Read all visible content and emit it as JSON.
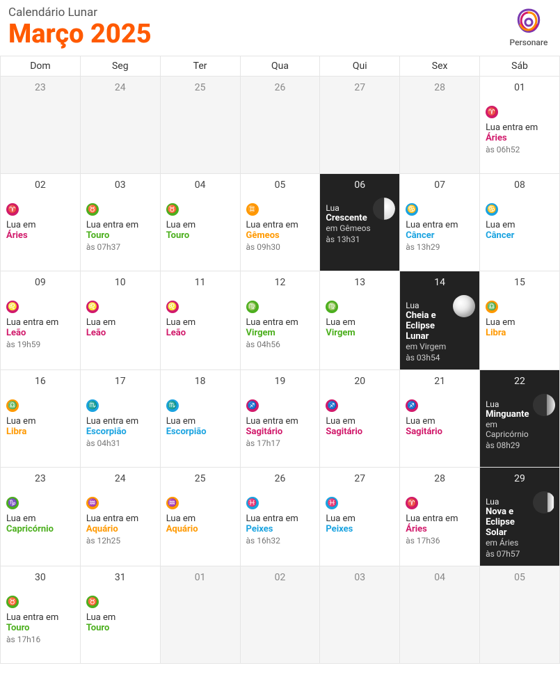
{
  "header": {
    "subtitle": "Calendário Lunar",
    "title": "Março 2025",
    "logo_text": "Personare"
  },
  "colors": {
    "accent": "#ff5a00",
    "aries": "#d11a6b",
    "touro": "#4caf1e",
    "gemeos": "#ff9900",
    "cancer": "#1aa3e0",
    "leao": "#d11a6b",
    "virgem": "#4caf1e",
    "libra": "#ff9900",
    "escorpiao": "#1aa3e0",
    "sagitario": "#d11a6b",
    "capricornio": "#4caf1e",
    "aquario": "#ff9900",
    "peixes": "#1aa3e0",
    "phase_bg": "#222222",
    "inactive_bg": "#f5f5f5",
    "grid": "#e5e5e5"
  },
  "weekdays": [
    "Dom",
    "Seg",
    "Ter",
    "Qua",
    "Qui",
    "Sex",
    "Sáb"
  ],
  "cells": [
    [
      {
        "day": "23",
        "inactive": true
      },
      {
        "day": "24",
        "inactive": true
      },
      {
        "day": "25",
        "inactive": true
      },
      {
        "day": "26",
        "inactive": true
      },
      {
        "day": "27",
        "inactive": true
      },
      {
        "day": "28",
        "inactive": true
      },
      {
        "day": "01",
        "sign_key": "aries",
        "glyph": "♈",
        "line": "Lua entra em",
        "sign": "Áries",
        "time": "às 06h52"
      }
    ],
    [
      {
        "day": "02",
        "sign_key": "aries",
        "glyph": "♈",
        "line": "Lua em",
        "sign": "Áries"
      },
      {
        "day": "03",
        "sign_key": "touro",
        "glyph": "♉",
        "line": "Lua entra em",
        "sign": "Touro",
        "time": "às 07h37"
      },
      {
        "day": "04",
        "sign_key": "touro",
        "glyph": "♉",
        "line": "Lua em",
        "sign": "Touro"
      },
      {
        "day": "05",
        "sign_key": "gemeos",
        "glyph": "♊",
        "line": "Lua entra em",
        "sign": "Gêmeos",
        "time": "às 09h30"
      },
      {
        "day": "06",
        "phase": true,
        "moon": "half",
        "phase_pre": "Lua",
        "phase_name": "Crescente",
        "phase_sign": "em Gêmeos",
        "time": "às 13h31"
      },
      {
        "day": "07",
        "sign_key": "cancer",
        "glyph": "♋",
        "line": "Lua entra em",
        "sign": "Câncer",
        "time": "às 13h29"
      },
      {
        "day": "08",
        "sign_key": "cancer",
        "glyph": "♋",
        "line": "Lua em",
        "sign": "Câncer"
      }
    ],
    [
      {
        "day": "09",
        "sign_key": "leao",
        "glyph": "♌",
        "line": "Lua entra em",
        "sign": "Leão",
        "time": "às 19h59"
      },
      {
        "day": "10",
        "sign_key": "leao",
        "glyph": "♌",
        "line": "Lua em",
        "sign": "Leão"
      },
      {
        "day": "11",
        "sign_key": "leao",
        "glyph": "♌",
        "line": "Lua em",
        "sign": "Leão"
      },
      {
        "day": "12",
        "sign_key": "virgem",
        "glyph": "♍",
        "line": "Lua entra em",
        "sign": "Virgem",
        "time": "às 04h56"
      },
      {
        "day": "13",
        "sign_key": "virgem",
        "glyph": "♍",
        "line": "Lua em",
        "sign": "Virgem"
      },
      {
        "day": "14",
        "phase": true,
        "moon": "full",
        "phase_pre": "Lua",
        "phase_name": "Cheia e Eclipse Lunar",
        "phase_sign": "em Virgem",
        "time": "às 03h54"
      },
      {
        "day": "15",
        "sign_key": "libra",
        "glyph": "♎",
        "line": "Lua em",
        "sign": "Libra"
      }
    ],
    [
      {
        "day": "16",
        "sign_key": "libra",
        "glyph": "♎",
        "line": "Lua em",
        "sign": "Libra"
      },
      {
        "day": "17",
        "sign_key": "escorpiao",
        "glyph": "♏",
        "line": "Lua entra em",
        "sign": "Escorpião",
        "time": "às 04h31"
      },
      {
        "day": "18",
        "sign_key": "escorpiao",
        "glyph": "♏",
        "line": "Lua em",
        "sign": "Escorpião"
      },
      {
        "day": "19",
        "sign_key": "sagitario",
        "glyph": "♐",
        "line": "Lua entra em",
        "sign": "Sagitário",
        "time": "às 17h17"
      },
      {
        "day": "20",
        "sign_key": "sagitario",
        "glyph": "♐",
        "line": "Lua em",
        "sign": "Sagitário"
      },
      {
        "day": "21",
        "sign_key": "sagitario",
        "glyph": "♐",
        "line": "Lua em",
        "sign": "Sagitário"
      },
      {
        "day": "22",
        "phase": true,
        "moon": "waning",
        "phase_pre": "Lua",
        "phase_name": "Minguante",
        "phase_sign": "em Capricórnio",
        "time": "às 08h29"
      }
    ],
    [
      {
        "day": "23",
        "sign_key": "capricornio",
        "glyph": "♑",
        "line": "Lua em",
        "sign": "Capricórnio"
      },
      {
        "day": "24",
        "sign_key": "aquario",
        "glyph": "♒",
        "line": "Lua entra em",
        "sign": "Aquário",
        "time": "às 12h25"
      },
      {
        "day": "25",
        "sign_key": "aquario",
        "glyph": "♒",
        "line": "Lua em",
        "sign": "Aquário"
      },
      {
        "day": "26",
        "sign_key": "peixes",
        "glyph": "♓",
        "line": "Lua entra em",
        "sign": "Peixes",
        "time": "às 16h32"
      },
      {
        "day": "27",
        "sign_key": "peixes",
        "glyph": "♓",
        "line": "Lua em",
        "sign": "Peixes"
      },
      {
        "day": "28",
        "sign_key": "aries",
        "glyph": "♈",
        "line": "Lua entra em",
        "sign": "Áries",
        "time": "às 17h36"
      },
      {
        "day": "29",
        "phase": true,
        "moon": "cres",
        "phase_pre": "Lua",
        "phase_name": "Nova e Eclipse Solar",
        "phase_sign": "em Áries",
        "time": "às 07h57"
      }
    ],
    [
      {
        "day": "30",
        "sign_key": "touro",
        "glyph": "♉",
        "line": "Lua entra em",
        "sign": "Touro",
        "time": "às 17h16"
      },
      {
        "day": "31",
        "sign_key": "touro",
        "glyph": "♉",
        "line": "Lua em",
        "sign": "Touro"
      },
      {
        "day": "01",
        "inactive": true
      },
      {
        "day": "02",
        "inactive": true
      },
      {
        "day": "03",
        "inactive": true
      },
      {
        "day": "04",
        "inactive": true
      },
      {
        "day": "05",
        "inactive": true
      }
    ]
  ]
}
